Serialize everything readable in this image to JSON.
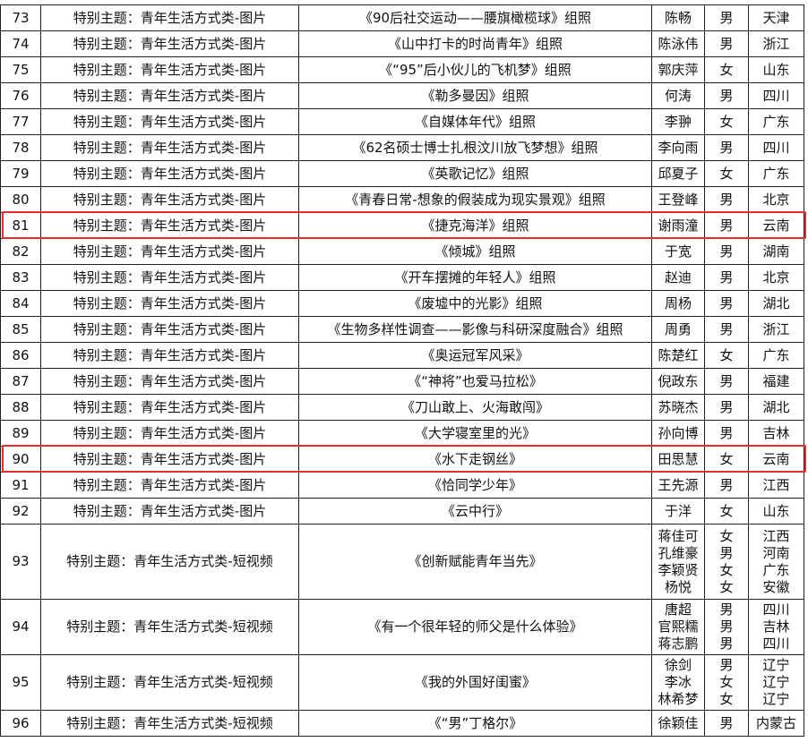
{
  "highlight_color": "#e8302a",
  "rows": [
    {
      "no": "73",
      "category": "特别主题：青年生活方式类-图片",
      "title": "《90后社交运动——腰旗橄榄球》组照",
      "names": [
        "陈畅"
      ],
      "genders": [
        "男"
      ],
      "regions": [
        "天津"
      ]
    },
    {
      "no": "74",
      "category": "特别主题：青年生活方式类-图片",
      "title": "《山中打卡的时尚青年》组照",
      "names": [
        "陈泳伟"
      ],
      "genders": [
        "男"
      ],
      "regions": [
        "浙江"
      ]
    },
    {
      "no": "75",
      "category": "特别主题：青年生活方式类-图片",
      "title": "《“95”后小伙儿的飞机梦》组照",
      "names": [
        "郭庆萍"
      ],
      "genders": [
        "女"
      ],
      "regions": [
        "山东"
      ]
    },
    {
      "no": "76",
      "category": "特别主题：青年生活方式类-图片",
      "title": "《勒多曼因》组照",
      "names": [
        "何涛"
      ],
      "genders": [
        "男"
      ],
      "regions": [
        "四川"
      ]
    },
    {
      "no": "77",
      "category": "特别主题：青年生活方式类-图片",
      "title": "《自媒体年代》组照",
      "names": [
        "李翀"
      ],
      "genders": [
        "女"
      ],
      "regions": [
        "广东"
      ]
    },
    {
      "no": "78",
      "category": "特别主题：青年生活方式类-图片",
      "title": "《62名硕士博士扎根汶川放飞梦想》组照",
      "names": [
        "李向雨"
      ],
      "genders": [
        "男"
      ],
      "regions": [
        "四川"
      ]
    },
    {
      "no": "79",
      "category": "特别主题：青年生活方式类-图片",
      "title": "《英歌记忆》组照",
      "names": [
        "邱夏子"
      ],
      "genders": [
        "女"
      ],
      "regions": [
        "广东"
      ]
    },
    {
      "no": "80",
      "category": "特别主题：青年生活方式类-图片",
      "title": "《青春日常-想象的假装成为现实景观》组照",
      "names": [
        "王登峰"
      ],
      "genders": [
        "男"
      ],
      "regions": [
        "北京"
      ]
    },
    {
      "no": "81",
      "category": "特别主题：青年生活方式类-图片",
      "title": "《捷克海洋》组照",
      "names": [
        "谢雨潼"
      ],
      "genders": [
        "男"
      ],
      "regions": [
        "云南"
      ],
      "highlighted": true
    },
    {
      "no": "82",
      "category": "特别主题：青年生活方式类-图片",
      "title": "《倾城》组照",
      "names": [
        "于宽"
      ],
      "genders": [
        "男"
      ],
      "regions": [
        "湖南"
      ]
    },
    {
      "no": "83",
      "category": "特别主题：青年生活方式类-图片",
      "title": "《开车摆摊的年轻人》组照",
      "names": [
        "赵迪"
      ],
      "genders": [
        "男"
      ],
      "regions": [
        "北京"
      ]
    },
    {
      "no": "84",
      "category": "特别主题：青年生活方式类-图片",
      "title": "《废墟中的光影》组照",
      "names": [
        "周杨"
      ],
      "genders": [
        "男"
      ],
      "regions": [
        "湖北"
      ]
    },
    {
      "no": "85",
      "category": "特别主题：青年生活方式类-图片",
      "title": "《生物多样性调查——影像与科研深度融合》组照",
      "names": [
        "周勇"
      ],
      "genders": [
        "男"
      ],
      "regions": [
        "浙江"
      ]
    },
    {
      "no": "86",
      "category": "特别主题：青年生活方式类-图片",
      "title": "《奥运冠军风采》",
      "names": [
        "陈楚红"
      ],
      "genders": [
        "女"
      ],
      "regions": [
        "广东"
      ]
    },
    {
      "no": "87",
      "category": "特别主题：青年生活方式类-图片",
      "title": "《“神将”也爱马拉松》",
      "names": [
        "倪政东"
      ],
      "genders": [
        "男"
      ],
      "regions": [
        "福建"
      ]
    },
    {
      "no": "88",
      "category": "特别主题：青年生活方式类-图片",
      "title": "《刀山敢上、火海敢闯》",
      "names": [
        "苏晓杰"
      ],
      "genders": [
        "男"
      ],
      "regions": [
        "湖北"
      ]
    },
    {
      "no": "89",
      "category": "特别主题：青年生活方式类-图片",
      "title": "《大学寝室里的光》",
      "names": [
        "孙向博"
      ],
      "genders": [
        "男"
      ],
      "regions": [
        "吉林"
      ]
    },
    {
      "no": "90",
      "category": "特别主题：青年生活方式类-图片",
      "title": "《水下走钢丝》",
      "names": [
        "田思慧"
      ],
      "genders": [
        "女"
      ],
      "regions": [
        "云南"
      ],
      "highlighted": true
    },
    {
      "no": "91",
      "category": "特别主题：青年生活方式类-图片",
      "title": "《恰同学少年》",
      "names": [
        "王先源"
      ],
      "genders": [
        "男"
      ],
      "regions": [
        "江西"
      ]
    },
    {
      "no": "92",
      "category": "特别主题：青年生活方式类-图片",
      "title": "《云中行》",
      "names": [
        "于洋"
      ],
      "genders": [
        "女"
      ],
      "regions": [
        "山东"
      ]
    },
    {
      "no": "93",
      "category": "特别主题：青年生活方式类-短视频",
      "title": "《创新赋能青年当先》",
      "names": [
        "蒋佳可",
        "孔维豪",
        "李颖贤",
        "杨悦"
      ],
      "genders": [
        "女",
        "男",
        "女",
        "女"
      ],
      "regions": [
        "江西",
        "河南",
        "广东",
        "安徽"
      ]
    },
    {
      "no": "94",
      "category": "特别主题：青年生活方式类-短视频",
      "title": "《有一个很年轻的师父是什么体验》",
      "names": [
        "唐超",
        "官熙糯",
        "蒋志鹏"
      ],
      "genders": [
        "男",
        "男",
        "男"
      ],
      "regions": [
        "四川",
        "吉林",
        "四川"
      ]
    },
    {
      "no": "95",
      "category": "特别主题：青年生活方式类-短视频",
      "title": "《我的外国好闺蜜》",
      "names": [
        "徐剑",
        "李冰",
        "林希梦"
      ],
      "genders": [
        "男",
        "女",
        "女"
      ],
      "regions": [
        "辽宁",
        "辽宁",
        "辽宁"
      ]
    },
    {
      "no": "96",
      "category": "特别主题：青年生活方式类-短视频",
      "title": "《“男”丁格尔》",
      "names": [
        "徐颖佳"
      ],
      "genders": [
        "男"
      ],
      "regions": [
        "内蒙古"
      ]
    }
  ]
}
